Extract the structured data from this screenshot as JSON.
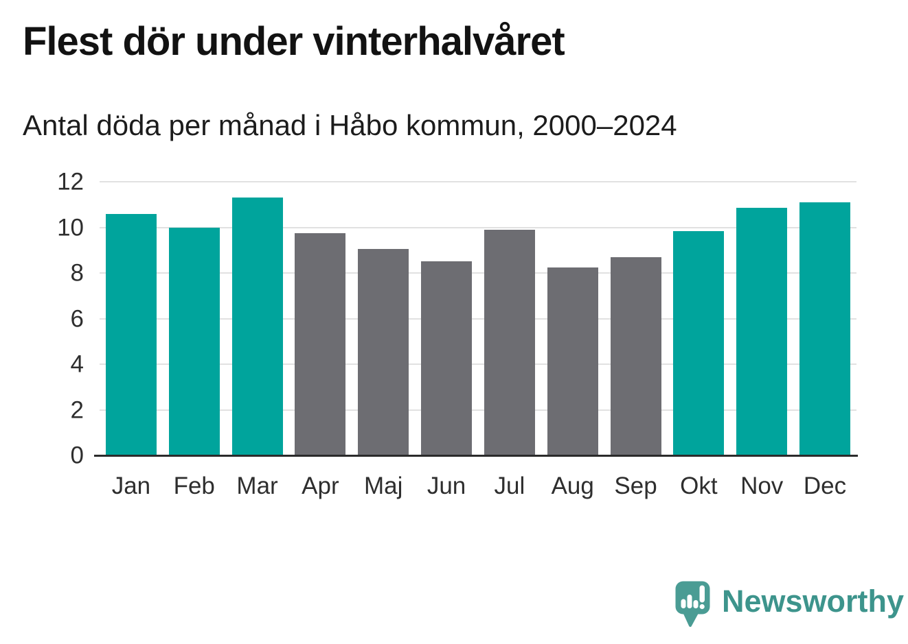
{
  "header": {
    "title": "Flest dör under vinterhalvåret",
    "subtitle": "Antal döda per månad i Håbo kommun, 2000–2024"
  },
  "chart_data": {
    "type": "bar",
    "title": "Flest dör under vinterhalvåret",
    "subtitle": "Antal döda per månad i Håbo kommun, 2000–2024",
    "categories": [
      "Jan",
      "Feb",
      "Mar",
      "Apr",
      "Maj",
      "Jun",
      "Jul",
      "Aug",
      "Sep",
      "Okt",
      "Nov",
      "Dec"
    ],
    "values": [
      10.6,
      10.0,
      11.3,
      9.75,
      9.05,
      8.5,
      9.9,
      8.25,
      8.7,
      9.85,
      10.85,
      11.1
    ],
    "bar_colors": [
      "teal",
      "teal",
      "teal",
      "gray",
      "gray",
      "gray",
      "gray",
      "gray",
      "gray",
      "teal",
      "teal",
      "teal"
    ],
    "xlabel": "",
    "ylabel": "",
    "ylim": [
      0,
      12
    ],
    "yticks": [
      0,
      2,
      4,
      6,
      8,
      10,
      12
    ],
    "grid": true,
    "legend": false
  },
  "colors": {
    "teal": "#00a49c",
    "gray": "#6d6d72",
    "grid": "#e1e1e1",
    "axis": "#2b2b2b",
    "tick_text": "#2e2e2e",
    "title_text": "#121212",
    "logo_icon_teal": "#4a9c94",
    "logo_text_teal": "#3d948c"
  },
  "footer": {
    "brand": "Newsworthy"
  }
}
